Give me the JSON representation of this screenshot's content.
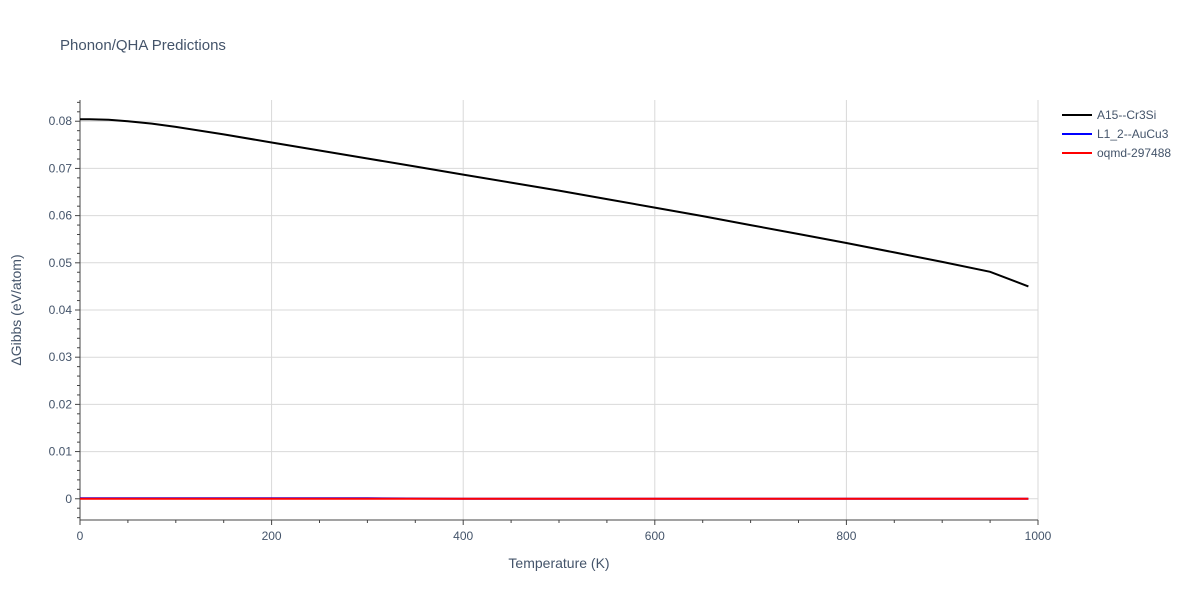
{
  "chart_data": {
    "type": "line",
    "title": "Phonon/QHA Predictions",
    "xlabel": "Temperature (K)",
    "ylabel": "ΔGibbs (eV/atom)",
    "xlim": [
      0,
      1000
    ],
    "ylim": [
      -0.0045,
      0.0845
    ],
    "x_ticks": [
      0,
      200,
      400,
      600,
      800,
      1000
    ],
    "x_tick_labels": [
      "0",
      "200",
      "400",
      "600",
      "800",
      "1000"
    ],
    "y_ticks": [
      0,
      0.01,
      0.02,
      0.03,
      0.04,
      0.05,
      0.06,
      0.07,
      0.08
    ],
    "y_tick_labels": [
      "0",
      "0.01",
      "0.02",
      "0.03",
      "0.04",
      "0.05",
      "0.06",
      "0.07",
      "0.08"
    ],
    "grid": true,
    "legend_position": "top-right",
    "series": [
      {
        "name": "A15--Cr3Si",
        "color": "#000000",
        "x": [
          0,
          10,
          30,
          50,
          75,
          100,
          150,
          200,
          250,
          300,
          350,
          400,
          450,
          500,
          550,
          600,
          650,
          700,
          750,
          800,
          850,
          900,
          950,
          990
        ],
        "y": [
          0.0804,
          0.0804,
          0.0803,
          0.08,
          0.0795,
          0.0788,
          0.0772,
          0.0755,
          0.0738,
          0.0721,
          0.0704,
          0.0687,
          0.067,
          0.0653,
          0.0635,
          0.0617,
          0.0599,
          0.058,
          0.0561,
          0.0542,
          0.0522,
          0.0502,
          0.0481,
          0.045
        ]
      },
      {
        "name": "L1_2--AuCu3",
        "color": "#0000ff",
        "x": [
          0,
          100,
          200,
          300,
          400,
          500,
          600,
          700,
          800,
          900,
          990
        ],
        "y": [
          0.0001,
          0.0001,
          0.0001,
          0.0001,
          0.0,
          0.0,
          0.0,
          0.0,
          0.0,
          0.0,
          0.0
        ]
      },
      {
        "name": "oqmd-297488",
        "color": "#ff0000",
        "x": [
          0,
          100,
          200,
          300,
          400,
          500,
          600,
          700,
          800,
          900,
          990
        ],
        "y": [
          0.0,
          0.0,
          0.0,
          0.0,
          0.0,
          0.0,
          0.0,
          0.0,
          0.0,
          0.0,
          0.0
        ]
      }
    ]
  }
}
